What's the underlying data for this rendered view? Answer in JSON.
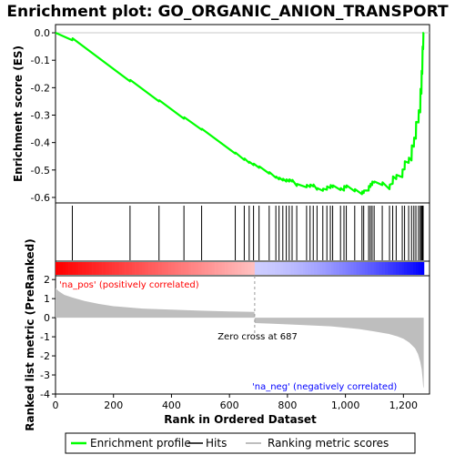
{
  "chart_data": {
    "type": "line",
    "title": "Enrichment plot: GO_ORGANIC_ANION_TRANSPORT",
    "top_panel": {
      "ylabel": "Enrichment score (ES)",
      "ylim": [
        -0.62,
        0.03
      ],
      "yticks": [
        0.0,
        -0.1,
        -0.2,
        -0.3,
        -0.4,
        -0.5,
        -0.6
      ],
      "ytick_labels": [
        "0.0",
        "-0.1",
        "-0.2",
        "-0.3",
        "-0.4",
        "-0.5",
        "-0.6"
      ],
      "series": [
        {
          "name": "Enrichment profile",
          "color": "#00ff00",
          "x": [
            0,
            58,
            59,
            257,
            258,
            357,
            358,
            443,
            444,
            504,
            505,
            620,
            621,
            651,
            652,
            668,
            669,
            683,
            684,
            702,
            703,
            737,
            738,
            760,
            761,
            771,
            772,
            784,
            785,
            796,
            797,
            806,
            807,
            816,
            817,
            832,
            833,
            866,
            867,
            878,
            879,
            889,
            890,
            902,
            903,
            922,
            923,
            936,
            937,
            948,
            949,
            956,
            957,
            983,
            984,
            995,
            996,
            1003,
            1004,
            1032,
            1033,
            1057,
            1058,
            1063,
            1064,
            1080,
            1081,
            1086,
            1087,
            1092,
            1093,
            1099,
            1100,
            1127,
            1128,
            1152,
            1153,
            1163,
            1164,
            1175,
            1176,
            1196,
            1197,
            1204,
            1205,
            1218,
            1219,
            1228,
            1229,
            1236,
            1237,
            1243,
            1244,
            1252,
            1253,
            1258,
            1259,
            1262,
            1263,
            1265,
            1266,
            1268,
            1269,
            1270
          ],
          "y": [
            0.0,
            -0.027,
            -0.02,
            -0.177,
            -0.172,
            -0.25,
            -0.246,
            -0.313,
            -0.308,
            -0.353,
            -0.35,
            -0.44,
            -0.437,
            -0.463,
            -0.458,
            -0.474,
            -0.47,
            -0.482,
            -0.477,
            -0.492,
            -0.487,
            -0.513,
            -0.508,
            -0.528,
            -0.524,
            -0.534,
            -0.528,
            -0.538,
            -0.532,
            -0.542,
            -0.534,
            -0.542,
            -0.534,
            -0.542,
            -0.536,
            -0.558,
            -0.551,
            -0.563,
            -0.554,
            -0.562,
            -0.553,
            -0.56,
            -0.553,
            -0.572,
            -0.566,
            -0.576,
            -0.568,
            -0.572,
            -0.56,
            -0.566,
            -0.555,
            -0.563,
            -0.556,
            -0.573,
            -0.566,
            -0.575,
            -0.558,
            -0.564,
            -0.556,
            -0.578,
            -0.57,
            -0.588,
            -0.578,
            -0.584,
            -0.575,
            -0.575,
            -0.558,
            -0.562,
            -0.55,
            -0.555,
            -0.542,
            -0.546,
            -0.542,
            -0.555,
            -0.545,
            -0.57,
            -0.553,
            -0.55,
            -0.523,
            -0.533,
            -0.518,
            -0.526,
            -0.498,
            -0.498,
            -0.468,
            -0.474,
            -0.455,
            -0.465,
            -0.41,
            -0.415,
            -0.382,
            -0.386,
            -0.325,
            -0.327,
            -0.282,
            -0.29,
            -0.204,
            -0.222,
            -0.138,
            -0.15,
            -0.05,
            -0.06,
            0.0,
            0.0
          ]
        }
      ]
    },
    "hits_panel": {
      "hit_positions": [
        58,
        257,
        357,
        443,
        504,
        620,
        651,
        668,
        683,
        702,
        737,
        760,
        771,
        784,
        796,
        806,
        816,
        832,
        866,
        878,
        889,
        902,
        922,
        936,
        948,
        956,
        983,
        995,
        1003,
        1032,
        1057,
        1063,
        1080,
        1086,
        1092,
        1099,
        1127,
        1152,
        1163,
        1175,
        1196,
        1204,
        1218,
        1228,
        1236,
        1243,
        1252,
        1258,
        1262,
        1265,
        1268
      ]
    },
    "bottom_panel": {
      "xlabel": "Rank in Ordered Dataset",
      "ylabel": "Ranked list metric (PreRanked)",
      "xlim": [
        0,
        1290
      ],
      "xticks": [
        0,
        200,
        400,
        600,
        800,
        1000,
        1200
      ],
      "xtick_labels": [
        "0",
        "200",
        "400",
        "600",
        "800",
        "1,000",
        "1,200"
      ],
      "ylim": [
        -4,
        2.2
      ],
      "yticks": [
        2,
        1,
        0,
        -1,
        -2,
        -3,
        -4
      ],
      "ytick_labels": [
        "2",
        "1",
        "0",
        "-1",
        "-2",
        "-3",
        "-4"
      ],
      "metric_x": [
        0,
        10,
        30,
        60,
        100,
        150,
        200,
        300,
        400,
        500,
        600,
        686,
        687,
        750,
        850,
        950,
        1050,
        1100,
        1150,
        1180,
        1200,
        1220,
        1240,
        1250,
        1258,
        1263,
        1266,
        1268,
        1270
      ],
      "metric_y": [
        1.55,
        1.4,
        1.2,
        1.05,
        0.88,
        0.72,
        0.6,
        0.48,
        0.42,
        0.37,
        0.33,
        0.3,
        -0.28,
        -0.32,
        -0.38,
        -0.45,
        -0.6,
        -0.72,
        -0.85,
        -0.98,
        -1.1,
        -1.3,
        -1.6,
        -1.9,
        -2.3,
        -2.7,
        -3.2,
        -3.6,
        -3.7
      ],
      "zero_cross": 687,
      "zero_cross_label": "Zero cross at 687",
      "pos_label": "'na_pos' (positively correlated)",
      "neg_label": "'na_neg' (negatively correlated)",
      "pos_color": "#ff0000",
      "neg_color": "#0000ff",
      "fill_color": "#bebebe"
    },
    "legend": [
      {
        "label": "Enrichment profile",
        "color": "#00ff00"
      },
      {
        "label": "Hits",
        "color": "#000000"
      },
      {
        "label": "Ranking metric scores",
        "color": "#bebebe"
      }
    ]
  }
}
